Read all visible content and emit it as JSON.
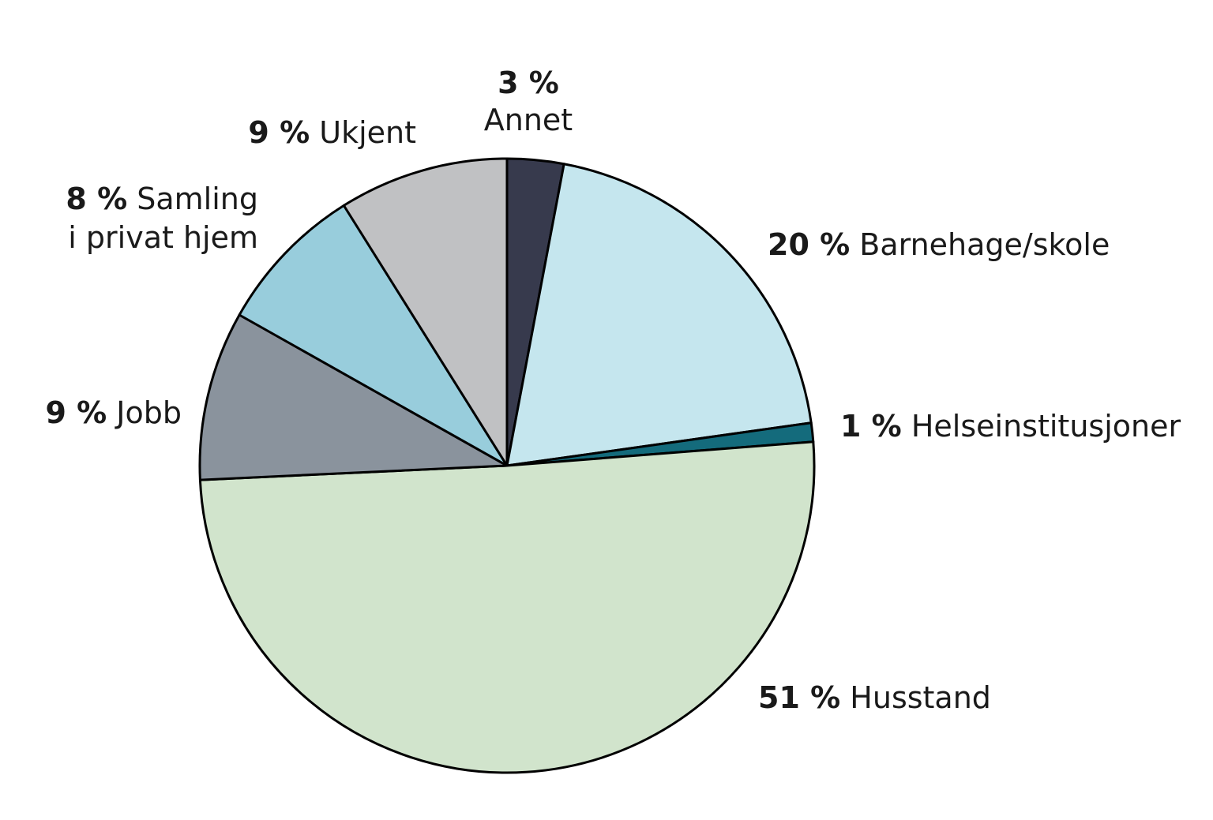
{
  "chart_data": {
    "type": "pie",
    "title": "",
    "start_angle_deg": 0,
    "direction": "clockwise",
    "slices": [
      {
        "name": "Annet",
        "pct_label": "3 %",
        "value": 3,
        "color": "#373a4d"
      },
      {
        "name": "Barnehage/skole",
        "pct_label": "20 %",
        "value": 20,
        "color": "#c5e6ee"
      },
      {
        "name": "Helseinstitusjoner",
        "pct_label": "1 %",
        "value": 1,
        "color": "#146b7c"
      },
      {
        "name": "Husstand",
        "pct_label": "51 %",
        "value": 51,
        "color": "#d1e4cc"
      },
      {
        "name": "Jobb",
        "pct_label": "9 %",
        "value": 9,
        "color": "#8a939d"
      },
      {
        "name": "Samling i privat hjem",
        "name_line1": "Samling",
        "name_line2": "i privat hjem",
        "pct_label": "8 %",
        "value": 8,
        "color": "#98cddc"
      },
      {
        "name": "Ukjent",
        "pct_label": "9 %",
        "value": 9,
        "color": "#c0c1c3"
      }
    ]
  }
}
